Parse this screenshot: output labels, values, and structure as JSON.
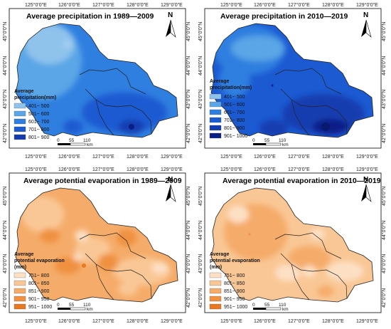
{
  "panels": [
    {
      "title": "Average precipitation in 1989—2009",
      "legend_title_lines": [
        "Average",
        "precipitation(mm)"
      ],
      "legend": [
        {
          "label": "401~ 500",
          "color": "#8fc3ec"
        },
        {
          "label": "501~ 600",
          "color": "#5aa6e6"
        },
        {
          "label": "601~ 700",
          "color": "#2f7fe0"
        },
        {
          "label": "701~ 800",
          "color": "#1c5ad2"
        },
        {
          "label": "801~ 900",
          "color": "#123cb0"
        }
      ],
      "x_ticks": [
        "125°0'0\"E",
        "126°0'0\"E",
        "127°0'0\"E",
        "128°0'0\"E",
        "129°0'0\"E"
      ],
      "y_ticks": [
        "45°0'0\"N",
        "44°0'0\"N",
        "43°0'0\"N",
        "42°0'0\"N"
      ],
      "scale": {
        "values": [
          "0",
          "55",
          "110"
        ],
        "unit": "km"
      },
      "north": "N"
    },
    {
      "title": "Average precipitation in 2010—2019",
      "legend_title_lines": [
        "Average",
        "precipitation(mm)"
      ],
      "legend": [
        {
          "label": "401~ 500",
          "color": "#8fc3ec"
        },
        {
          "label": "501~ 600",
          "color": "#5aa6e6"
        },
        {
          "label": "601~ 700",
          "color": "#2f7fe0"
        },
        {
          "label": "701~ 800",
          "color": "#1c5ad2"
        },
        {
          "label": "801~ 900",
          "color": "#123cb0"
        },
        {
          "label": "901~ 1000",
          "color": "#0a1f86"
        }
      ],
      "x_ticks": [
        "125°0'0\"E",
        "126°0'0\"E",
        "127°0'0\"E",
        "128°0'0\"E",
        "129°0'0\"E"
      ],
      "y_ticks": [
        "45°0'0\"N",
        "44°0'0\"N",
        "43°0'0\"N",
        "42°0'0\"N"
      ],
      "scale": {
        "values": [
          "0",
          "55",
          "110"
        ],
        "unit": "km"
      },
      "north": "N"
    },
    {
      "title": "Average potential evaporation in 1989—2009",
      "legend_title_lines": [
        "Average",
        "potential evaporation",
        "(mm)"
      ],
      "legend": [
        {
          "label": "751~ 800",
          "color": "#fde0c4"
        },
        {
          "label": "801~ 850",
          "color": "#f9c795"
        },
        {
          "label": "851~ 900",
          "color": "#f5ac6a"
        },
        {
          "label": "901~ 950",
          "color": "#ef9140"
        },
        {
          "label": "951~ 1000",
          "color": "#e9781e"
        }
      ],
      "x_ticks": [
        "125°0'0\"E",
        "126°0'0\"E",
        "127°0'0\"E",
        "128°0'0\"E",
        "129°0'0\"E"
      ],
      "y_ticks": [
        "45°0'0\"N",
        "44°0'0\"N",
        "43°0'0\"N",
        "42°0'0\"N"
      ],
      "scale": {
        "values": [
          "0",
          "55",
          "110"
        ],
        "unit": "km"
      },
      "north": "N"
    },
    {
      "title": "Average potential evaporation in 2010—2019",
      "legend_title_lines": [
        "Average",
        "potential evaporation",
        "(mm)"
      ],
      "legend": [
        {
          "label": "751~ 800",
          "color": "#fde0c4"
        },
        {
          "label": "801~ 850",
          "color": "#f9c795"
        },
        {
          "label": "851~ 900",
          "color": "#f5ac6a"
        },
        {
          "label": "901~ 950",
          "color": "#ef9140"
        },
        {
          "label": "951~ 1000",
          "color": "#e9781e"
        }
      ],
      "x_ticks": [
        "125°0'0\"E",
        "126°0'0\"E",
        "127°0'0\"E",
        "128°0'0\"E",
        "129°0'0\"E"
      ],
      "y_ticks": [
        "45°0'0\"N",
        "44°0'0\"N",
        "43°0'0\"N",
        "42°0'0\"N"
      ],
      "scale": {
        "values": [
          "0",
          "55",
          "110"
        ],
        "unit": "km"
      },
      "north": "N"
    }
  ]
}
